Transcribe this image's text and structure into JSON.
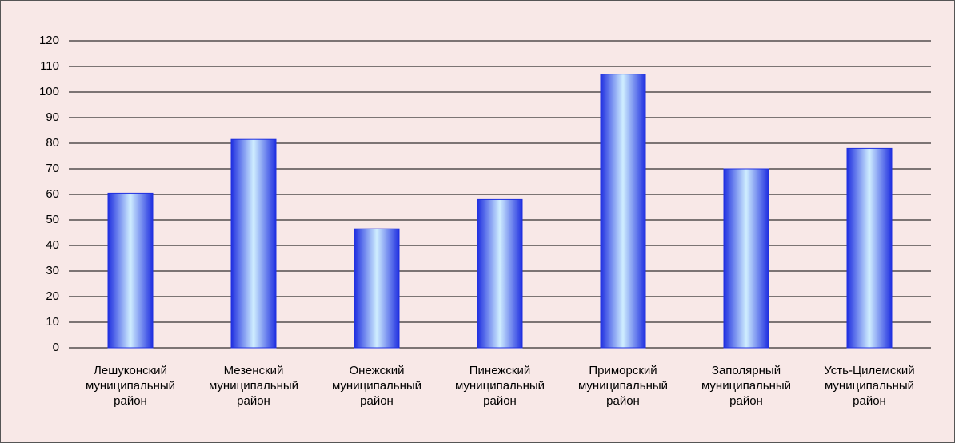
{
  "chart_data": {
    "type": "bar",
    "categories": [
      "Лешуконский муниципальный район",
      "Мезенский муниципальный район",
      "Онежский муниципальный район",
      "Пинежский муниципальный район",
      "Приморский муниципальный район",
      "Заполярный муниципальный район",
      "Усть-Цилемский муниципальный район"
    ],
    "values": [
      60.5,
      81.5,
      46.5,
      58,
      107,
      70,
      78
    ],
    "color": "#1f2fe0",
    "ylim": [
      0,
      120
    ],
    "yticks": [
      0,
      10,
      20,
      30,
      40,
      50,
      60,
      70,
      80,
      90,
      100,
      110,
      120
    ],
    "grid": true
  }
}
